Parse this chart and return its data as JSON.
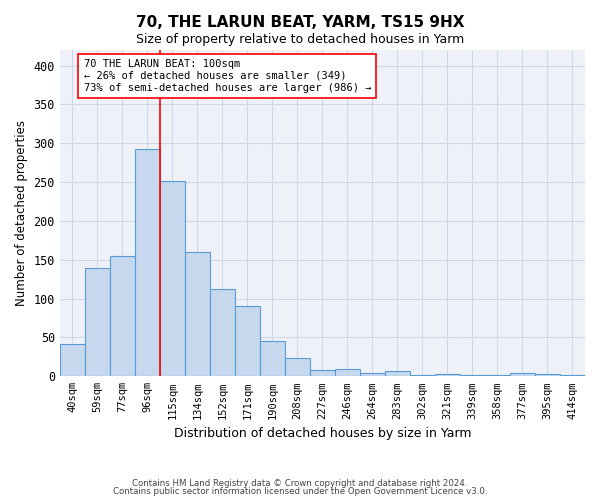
{
  "title": "70, THE LARUN BEAT, YARM, TS15 9HX",
  "subtitle": "Size of property relative to detached houses in Yarm",
  "xlabel": "Distribution of detached houses by size in Yarm",
  "ylabel": "Number of detached properties",
  "bar_labels": [
    "40sqm",
    "59sqm",
    "77sqm",
    "96sqm",
    "115sqm",
    "134sqm",
    "152sqm",
    "171sqm",
    "190sqm",
    "208sqm",
    "227sqm",
    "246sqm",
    "264sqm",
    "283sqm",
    "302sqm",
    "321sqm",
    "339sqm",
    "358sqm",
    "377sqm",
    "395sqm",
    "414sqm"
  ],
  "bar_values": [
    42,
    140,
    155,
    293,
    251,
    160,
    113,
    91,
    46,
    24,
    8,
    10,
    4,
    7,
    2,
    3,
    2,
    2,
    4,
    3,
    2
  ],
  "bar_color": "#c5d8ed",
  "bar_edge_color": "#5b9bd5",
  "grid_color": "#d0d8e8",
  "background_color": "#eef2f8",
  "red_line_x": 3.5,
  "annotation_text": "70 THE LARUN BEAT: 100sqm\n← 26% of detached houses are smaller (349)\n73% of semi-detached houses are larger (986) →",
  "footer1": "Contains HM Land Registry data © Crown copyright and database right 2024.",
  "footer2": "Contains public sector information licensed under the Open Government Licence v3.0.",
  "ylim": [
    0,
    420
  ],
  "yticks": [
    0,
    50,
    100,
    150,
    200,
    250,
    300,
    350,
    400
  ]
}
